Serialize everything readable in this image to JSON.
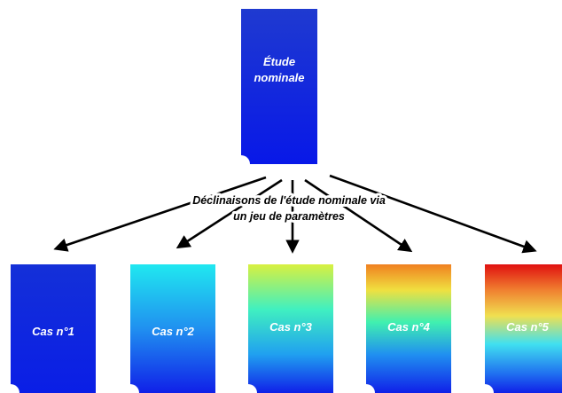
{
  "nominal": {
    "lines": [
      "Étude",
      "nominale"
    ]
  },
  "caption": {
    "lines": [
      "Déclinaisons de l'étude nominale via",
      "un jeu de paramètres"
    ]
  },
  "cases": [
    "Cas n°1",
    "Cas n°2",
    "Cas n°3",
    "Cas n°4",
    "Cas n°5"
  ]
}
